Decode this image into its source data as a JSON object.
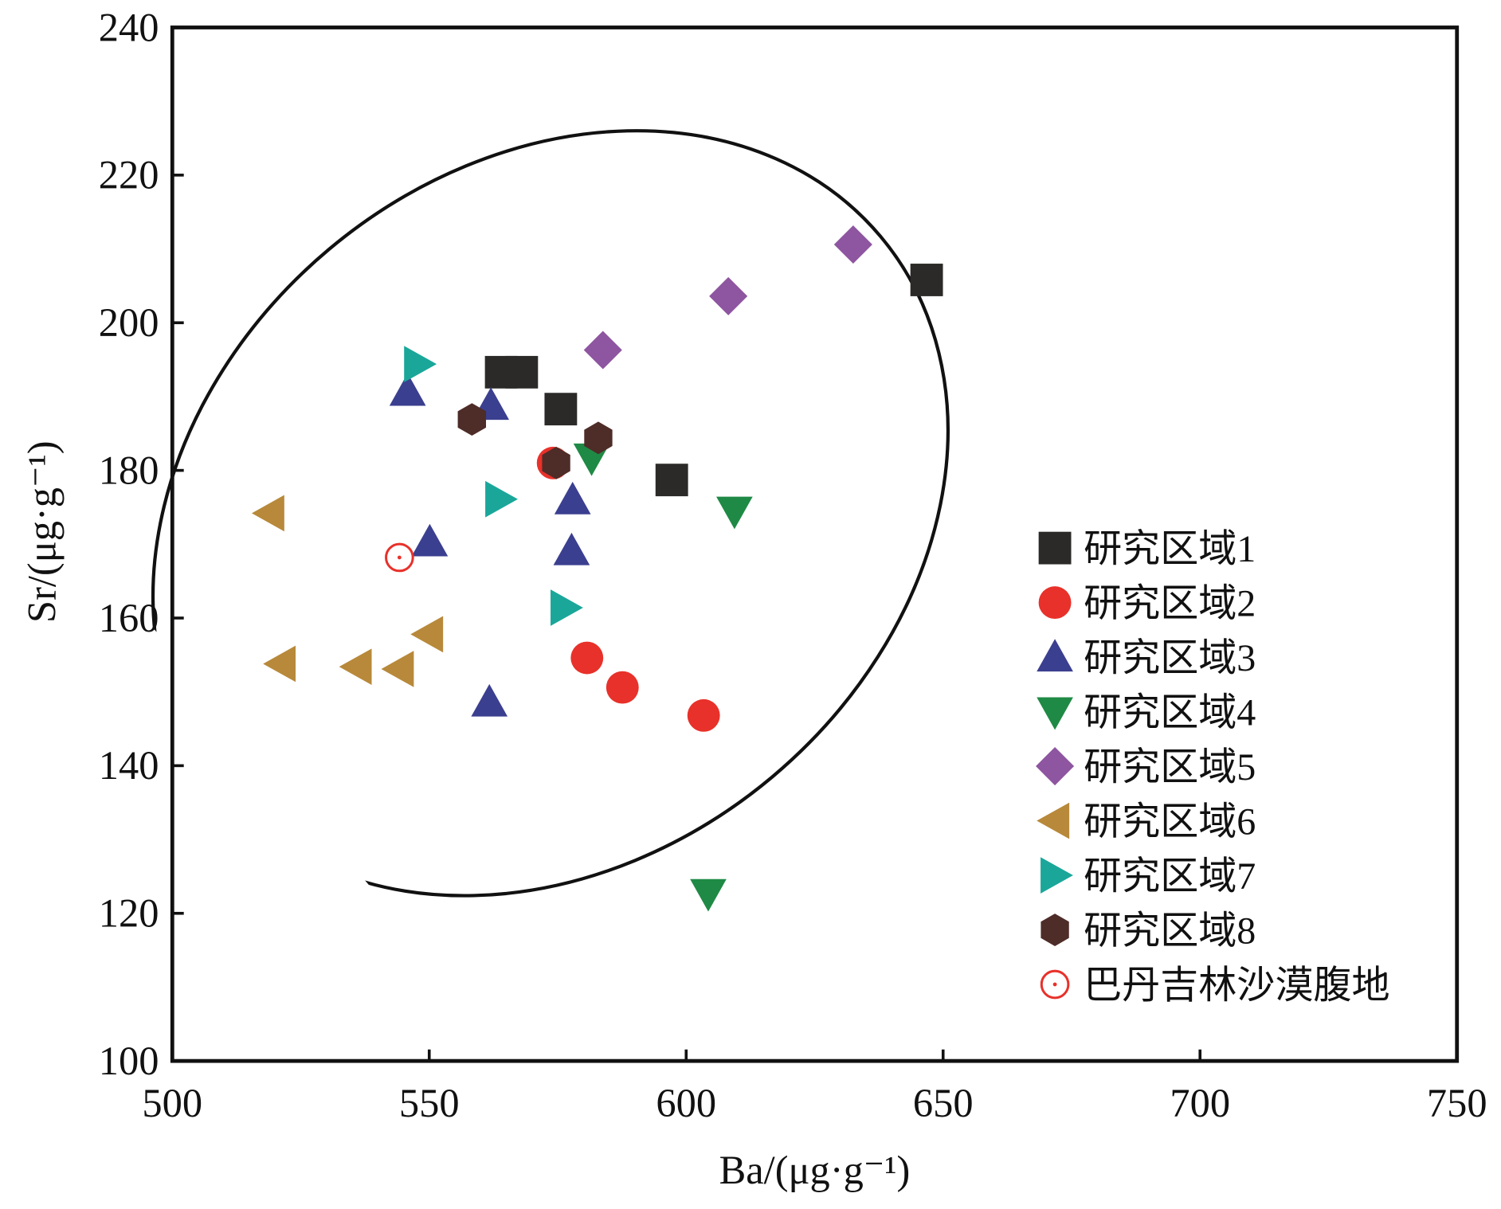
{
  "chart_data": {
    "type": "scatter",
    "xlabel": "Ba/(μg·g⁻¹)",
    "ylabel": "Sr/(μg·g⁻¹)",
    "xlim": [
      500,
      750
    ],
    "ylim": [
      100,
      240
    ],
    "xticks": [
      500,
      550,
      600,
      650,
      700,
      750
    ],
    "yticks": [
      100,
      120,
      140,
      160,
      180,
      200,
      220,
      240
    ],
    "grid": false,
    "legend_position": "bottom-right",
    "ellipse": {
      "center": [
        573.6,
        174.2
      ],
      "note": "confidence ellipse"
    },
    "series": [
      {
        "name": "研究区域1",
        "marker": "square",
        "color": "#2b2a28",
        "points": [
          [
            564,
            193.3
          ],
          [
            568,
            193.3
          ],
          [
            575.6,
            188.3
          ],
          [
            597.2,
            178.7
          ],
          [
            646.8,
            205.8
          ]
        ]
      },
      {
        "name": "研究区域2",
        "marker": "circle",
        "color": "#e8312a",
        "points": [
          [
            574.1,
            181
          ],
          [
            580.7,
            154.6
          ],
          [
            587.6,
            150.6
          ],
          [
            603.4,
            146.8
          ]
        ]
      },
      {
        "name": "研究区域3",
        "marker": "triangle-up",
        "color": "#3b3f8f",
        "points": [
          [
            545.8,
            190.7
          ],
          [
            562,
            188.8
          ],
          [
            577.9,
            176
          ],
          [
            550.1,
            170.3
          ],
          [
            577.7,
            169.1
          ],
          [
            561.7,
            148.6
          ]
        ]
      },
      {
        "name": "研究区域4",
        "marker": "triangle-down",
        "color": "#1f8a45",
        "points": [
          [
            581.6,
            181.7
          ],
          [
            609.4,
            174.5
          ],
          [
            604.3,
            122.7
          ]
        ]
      },
      {
        "name": "研究区域5",
        "marker": "diamond",
        "color": "#8e55a0",
        "points": [
          [
            583.8,
            196.3
          ],
          [
            608.2,
            203.6
          ],
          [
            632.5,
            210.6
          ]
        ]
      },
      {
        "name": "研究区域6",
        "marker": "triangle-left",
        "color": "#b8893a",
        "points": [
          [
            519,
            174.2
          ],
          [
            521.2,
            153.8
          ],
          [
            536,
            153.4
          ],
          [
            544.2,
            153.1
          ],
          [
            549.9,
            157.8
          ]
        ]
      },
      {
        "name": "研究区域7",
        "marker": "triangle-right",
        "color": "#1aa79a",
        "points": [
          [
            547.9,
            194.4
          ],
          [
            563.7,
            176.1
          ],
          [
            576.4,
            161.4
          ]
        ]
      },
      {
        "name": "研究区域8",
        "marker": "hexagon",
        "color": "#4e2c28",
        "points": [
          [
            558.3,
            186.9
          ],
          [
            574.7,
            181
          ],
          [
            582.9,
            184.4
          ]
        ]
      },
      {
        "name": "巴丹吉林沙漠腹地",
        "marker": "circle-dot",
        "color": "#e8312a",
        "points": [
          [
            544.2,
            168.2
          ]
        ]
      }
    ]
  }
}
